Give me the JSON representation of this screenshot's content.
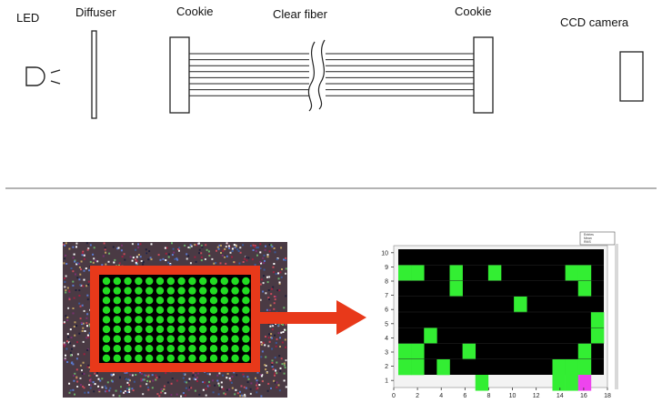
{
  "labels": {
    "led": "LED",
    "diffuser": "Diffuser",
    "cookie_left": "Cookie",
    "clear_fiber": "Clear fiber",
    "cookie_right": "Cookie",
    "ccd_camera": "CCD camera"
  },
  "colors": {
    "line": "#222222",
    "separator": "#9a9a9a",
    "frame_red": "#e8391a",
    "arrow_red": "#e8391a",
    "fiber_green": "#22dd22",
    "map_bg": "#000000",
    "map_green": "#33ee33",
    "map_magenta": "#ee44ee"
  },
  "fiber_grid": {
    "rows": 9,
    "cols": 14
  },
  "hit_map": {
    "x_ticks": [
      "0",
      "2",
      "4",
      "6",
      "8",
      "10",
      "12",
      "14",
      "16",
      "18"
    ],
    "y_ticks": [
      "1",
      "2",
      "3",
      "4",
      "5",
      "6",
      "7",
      "8",
      "9",
      "10"
    ],
    "legend_lines": [
      "Entries",
      "Mean",
      "RMS"
    ],
    "green_cells": [
      [
        1,
        8
      ],
      [
        2,
        8
      ],
      [
        5,
        8
      ],
      [
        5,
        7
      ],
      [
        8,
        8
      ],
      [
        14,
        8
      ],
      [
        15,
        8
      ],
      [
        15,
        7
      ],
      [
        10,
        6
      ],
      [
        16,
        5
      ],
      [
        16,
        4
      ],
      [
        3,
        4
      ],
      [
        1,
        3
      ],
      [
        2,
        3
      ],
      [
        1,
        2
      ],
      [
        2,
        2
      ],
      [
        6,
        3
      ],
      [
        4,
        2
      ],
      [
        13,
        2
      ],
      [
        14,
        2
      ],
      [
        13,
        1
      ],
      [
        14,
        1
      ],
      [
        15,
        2
      ],
      [
        15,
        3
      ],
      [
        7,
        1
      ]
    ],
    "magenta_cells": [
      [
        15,
        1
      ]
    ]
  }
}
